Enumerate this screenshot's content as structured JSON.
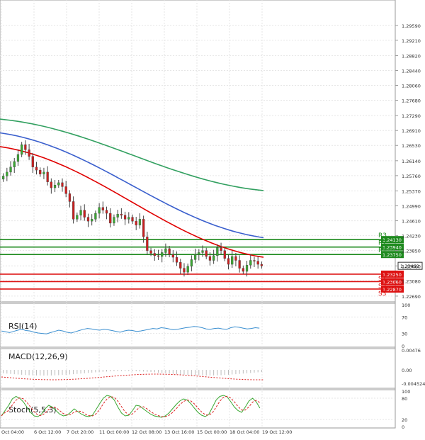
{
  "colors": {
    "bull": "#3aa832",
    "bear": "#cc1f1f",
    "wick": "#444444",
    "ma_fast": "#e00000",
    "ma_mid": "#3a5fcd",
    "ma_slow": "#32a060",
    "resistance": "#1e8a1e",
    "support": "#dd1111",
    "rsi": "#3b8fd0",
    "macd_hist": "#bbbbbb",
    "macd_signal": "#dd2222",
    "stoch_k": "#3aa832",
    "stoch_d": "#dd2222",
    "grid": "#e6e6e6",
    "axis_text": "#333333"
  },
  "chart_data": {
    "type": "candlestick",
    "symbol_timeframe": "GBPUSD H4",
    "price_axis": {
      "ylim": [
        1.2258,
        1.302
      ],
      "ticks": [
        "1.29590",
        "1.29210",
        "1.28820",
        "1.28440",
        "1.28060",
        "1.27680",
        "1.27290",
        "1.26910",
        "1.26530",
        "1.26140",
        "1.25760",
        "1.25370",
        "1.24990",
        "1.24610",
        "1.24230",
        "1.23850",
        "1.23460",
        "1.23080",
        "1.22690"
      ]
    },
    "x_ticks": [
      "Oct 04:00",
      "6 Oct 12:00",
      "7 Oct 20:00",
      "11 Oct 00:00",
      "12 Oct 08:00",
      "13 Oct 16:00",
      "15 Oct 00:00",
      "18 Oct 04:00",
      "19 Oct 12:00"
    ],
    "current_price": {
      "value": 1.23462,
      "label": "1.23462"
    },
    "levels": [
      {
        "name": "R3",
        "value": 1.2413,
        "label": "1.24130",
        "kind": "resistance"
      },
      {
        "name": "R2",
        "value": 1.2394,
        "label": "1.23940",
        "kind": "resistance"
      },
      {
        "name": "R1",
        "value": 1.2375,
        "label": "1.23750",
        "kind": "resistance"
      },
      {
        "name": "S1",
        "value": 1.2325,
        "label": "1.23250",
        "kind": "support"
      },
      {
        "name": "S2",
        "value": 1.2306,
        "label": "1.23060",
        "kind": "support"
      },
      {
        "name": "S3",
        "value": 1.2287,
        "label": "1.22870",
        "kind": "support"
      }
    ],
    "candles_close": [
      1.2575,
      1.2585,
      1.2598,
      1.2612,
      1.263,
      1.2655,
      1.2642,
      1.2625,
      1.2598,
      1.259,
      1.258,
      1.2585,
      1.256,
      1.2545,
      1.2552,
      1.2558,
      1.2548,
      1.253,
      1.251,
      1.2465,
      1.2475,
      1.2488,
      1.247,
      1.246,
      1.2465,
      1.248,
      1.2495,
      1.2488,
      1.248,
      1.2455,
      1.247,
      1.2478,
      1.2475,
      1.2465,
      1.247,
      1.246,
      1.245,
      1.2465,
      1.242,
      1.2385,
      1.2378,
      1.2372,
      1.237,
      1.238,
      1.239,
      1.2375,
      1.2368,
      1.2355,
      1.234,
      1.233,
      1.2345,
      1.2362,
      1.2375,
      1.238,
      1.2385,
      1.237,
      1.236,
      1.2372,
      1.2392,
      1.2385,
      1.2365,
      1.235,
      1.237,
      1.236,
      1.234,
      1.2332,
      1.2348,
      1.236,
      1.2358,
      1.235,
      1.2346
    ],
    "moving_averages": [
      {
        "name": "MA fast",
        "start": 1.265,
        "end": 1.2368
      },
      {
        "name": "MA mid",
        "start": 1.2685,
        "end": 1.2418
      },
      {
        "name": "MA slow",
        "start": 1.272,
        "end": 1.2538
      }
    ],
    "indicators": {
      "rsi": {
        "label": "RSI(14)",
        "ticks": [
          "100",
          "70",
          "30",
          "0"
        ],
        "values": [
          36,
          34,
          32,
          35,
          38,
          40,
          37,
          36,
          33,
          31,
          30,
          29,
          32,
          35,
          38,
          36,
          33,
          31,
          34,
          37,
          40,
          42,
          41,
          39,
          38,
          40,
          39,
          37,
          35,
          33,
          36,
          38,
          37,
          35,
          36,
          38,
          40,
          42,
          41,
          44,
          43,
          41,
          39,
          40,
          42,
          44,
          45,
          47,
          46,
          44,
          41,
          40,
          42,
          43,
          41,
          40,
          44,
          46,
          45,
          43,
          41,
          42,
          44,
          43
        ]
      },
      "macd": {
        "label": "MACD(12,26,9)",
        "ticks": [
          "0.00476",
          "0.00",
          "-0.004524"
        ],
        "hist_depth": 8
      },
      "stoch": {
        "label": "Stoch(5,5,3)",
        "ticks": [
          "100",
          "80",
          "20",
          "0"
        ],
        "k_values": [
          30,
          45,
          60,
          78,
          85,
          80,
          70,
          55,
          40,
          30,
          28,
          35,
          50,
          60,
          55,
          45,
          35,
          30,
          32,
          40,
          50,
          42,
          35,
          30,
          28,
          32,
          48,
          65,
          80,
          88,
          85,
          75,
          55,
          38,
          30,
          32,
          45,
          60,
          58,
          50,
          42,
          35,
          30,
          28,
          26,
          30,
          38,
          50,
          62,
          72,
          78,
          75,
          65,
          52,
          40,
          32,
          28,
          35,
          55,
          75,
          85,
          88,
          84,
          70,
          55,
          45,
          40,
          55,
          72,
          80,
          70,
          52
        ]
      }
    }
  }
}
